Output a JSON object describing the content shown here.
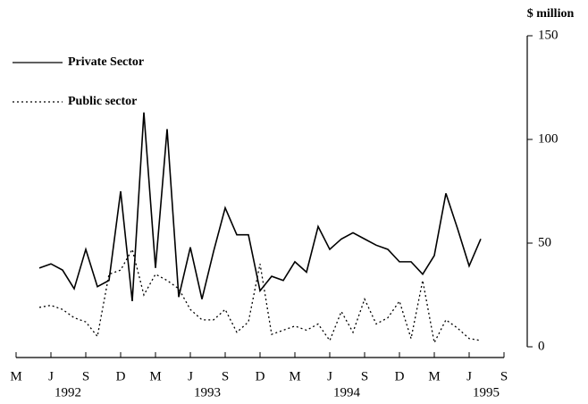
{
  "chart_data": {
    "type": "line",
    "y_axis_label": "$ million",
    "x": [
      "1992-05",
      "1992-06",
      "1992-07",
      "1992-08",
      "1992-09",
      "1992-10",
      "1992-11",
      "1992-12",
      "1993-01",
      "1993-02",
      "1993-03",
      "1993-04",
      "1993-05",
      "1993-06",
      "1993-07",
      "1993-08",
      "1993-09",
      "1993-10",
      "1993-11",
      "1993-12",
      "1994-01",
      "1994-02",
      "1994-03",
      "1994-04",
      "1994-05",
      "1994-06",
      "1994-07",
      "1994-08",
      "1994-09",
      "1994-10",
      "1994-11",
      "1994-12",
      "1995-01",
      "1995-02",
      "1995-03",
      "1995-04",
      "1995-05",
      "1995-06",
      "1995-07"
    ],
    "series": [
      {
        "name": "Private Sector",
        "color": "#000000",
        "line_style": "solid",
        "values": [
          38,
          40,
          37,
          28,
          47,
          29,
          32,
          75,
          22,
          113,
          38,
          105,
          24,
          48,
          23,
          46,
          67,
          54,
          54,
          27,
          34,
          32,
          41,
          36,
          58,
          47,
          52,
          55,
          52,
          49,
          47,
          41,
          41,
          35,
          44,
          74,
          57,
          39,
          52
        ]
      },
      {
        "name": "Public sector",
        "color": "#000000",
        "line_style": "dotted",
        "values": [
          19,
          20,
          18,
          14,
          12,
          5,
          35,
          37,
          47,
          25,
          35,
          32,
          28,
          18,
          13,
          13,
          18,
          7,
          12,
          40,
          6,
          8,
          10,
          8,
          11,
          3,
          17,
          7,
          23,
          11,
          14,
          22,
          4,
          32,
          2,
          13,
          9,
          4,
          3
        ]
      }
    ],
    "ylim": [
      0,
      150
    ],
    "yticks": [
      0,
      50,
      100,
      150
    ],
    "xticks": [
      {
        "value": "1992-03",
        "label": "M"
      },
      {
        "value": "1992-06",
        "label": "J"
      },
      {
        "value": "1992-09",
        "label": "S"
      },
      {
        "value": "1992-12",
        "label": "D"
      },
      {
        "value": "1993-03",
        "label": "M"
      },
      {
        "value": "1993-06",
        "label": "J"
      },
      {
        "value": "1993-09",
        "label": "S"
      },
      {
        "value": "1993-12",
        "label": "D"
      },
      {
        "value": "1994-03",
        "label": "M"
      },
      {
        "value": "1994-06",
        "label": "J"
      },
      {
        "value": "1994-09",
        "label": "S"
      },
      {
        "value": "1994-12",
        "label": "D"
      },
      {
        "value": "1995-03",
        "label": "M"
      },
      {
        "value": "1995-06",
        "label": "J"
      },
      {
        "value": "1995-09",
        "label": "S"
      }
    ],
    "year_labels": [
      {
        "value": "1992-07",
        "label": "1992"
      },
      {
        "value": "1993-07",
        "label": "1993"
      },
      {
        "value": "1994-07",
        "label": "1994"
      },
      {
        "value": "1995-07",
        "label": "1995"
      }
    ],
    "legend": "top-left",
    "grid": false
  }
}
